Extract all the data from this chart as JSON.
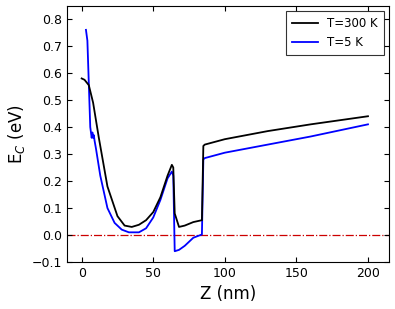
{
  "xlabel": "Z (nm)",
  "ylabel": "E$_C$ (eV)",
  "xlim": [
    -10,
    215
  ],
  "ylim": [
    -0.1,
    0.85
  ],
  "yticks": [
    -0.1,
    0.0,
    0.1,
    0.2,
    0.3,
    0.4,
    0.5,
    0.6,
    0.7,
    0.8
  ],
  "xticks": [
    0,
    50,
    100,
    150,
    200
  ],
  "legend_labels": [
    "T=300 K",
    "T=5 K"
  ],
  "hline_y": 0.0,
  "hline_color": "#cc0000",
  "hline_style": "-.",
  "black_line_x": [
    0,
    2,
    5,
    8,
    12,
    18,
    25,
    30,
    35,
    40,
    45,
    50,
    55,
    60,
    63,
    64,
    65,
    68,
    72,
    78,
    84,
    85,
    86,
    100,
    130,
    160,
    200
  ],
  "black_line_y": [
    0.58,
    0.575,
    0.555,
    0.49,
    0.36,
    0.18,
    0.07,
    0.035,
    0.03,
    0.038,
    0.055,
    0.085,
    0.14,
    0.22,
    0.26,
    0.25,
    0.08,
    0.03,
    0.035,
    0.048,
    0.055,
    0.33,
    0.335,
    0.355,
    0.385,
    0.41,
    0.44
  ],
  "blue_line_x": [
    3,
    4,
    5,
    6,
    7,
    7.5,
    8,
    8.5,
    9,
    10,
    13,
    18,
    23,
    28,
    33,
    40,
    45,
    50,
    55,
    60,
    63,
    64,
    65,
    68,
    72,
    78,
    84,
    85,
    86,
    100,
    130,
    160,
    200
  ],
  "blue_line_y": [
    0.76,
    0.72,
    0.56,
    0.4,
    0.36,
    0.38,
    0.36,
    0.37,
    0.35,
    0.32,
    0.22,
    0.1,
    0.045,
    0.02,
    0.01,
    0.01,
    0.025,
    0.065,
    0.13,
    0.21,
    0.235,
    0.22,
    -0.06,
    -0.055,
    -0.04,
    -0.01,
    0.002,
    0.28,
    0.285,
    0.305,
    0.335,
    0.365,
    0.41
  ]
}
